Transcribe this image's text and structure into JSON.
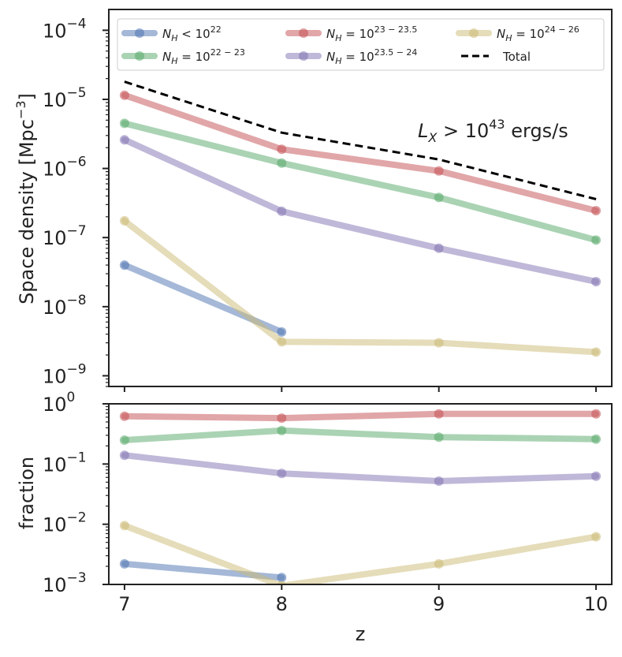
{
  "chart_data": [
    {
      "type": "line",
      "panel": "top",
      "yscale": "log",
      "ylabel": "Space density  [Mpc",
      "ylabel_sup": "−3",
      "ylabel_end": "]",
      "ylim": [
        7e-10,
        0.0002
      ],
      "xlim": [
        6.9,
        10.1
      ],
      "x": [
        7,
        8,
        9,
        10
      ],
      "x_tick_labels": [
        "7",
        "8",
        "9",
        "10"
      ],
      "y_ticks": [
        {
          "value": 1e-09,
          "base": "10",
          "exp": "−9"
        },
        {
          "value": 1e-08,
          "base": "10",
          "exp": "−8"
        },
        {
          "value": 1e-07,
          "base": "10",
          "exp": "−7"
        },
        {
          "value": 1e-06,
          "base": "10",
          "exp": "−6"
        },
        {
          "value": 1e-05,
          "base": "10",
          "exp": "−5"
        },
        {
          "value": 0.0001,
          "base": "10",
          "exp": "−4"
        }
      ],
      "annotation": {
        "prefix": "L",
        "sub": "X",
        "middle": " > 10",
        "sup": "43",
        "suffix": " ergs/s"
      },
      "series": [
        {
          "key": "s1",
          "name_base": "N",
          "name_sub": "H",
          "name_rest": " < 10",
          "name_sup": "22",
          "color": "#4c72b0",
          "x": [
            7,
            8
          ],
          "values": [
            4e-08,
            4.3e-09
          ]
        },
        {
          "key": "s2",
          "name_base": "N",
          "name_sub": "H",
          "name_rest": " = 10",
          "name_sup": "22 − 23",
          "color": "#55a868",
          "x": [
            7,
            8,
            9,
            10
          ],
          "values": [
            4.5e-06,
            1.2e-06,
            3.8e-07,
            9.2e-08
          ]
        },
        {
          "key": "s3",
          "name_base": "N",
          "name_sub": "H",
          "name_rest": " = 10",
          "name_sup": "23 − 23.5",
          "color": "#c44e52",
          "x": [
            7,
            8,
            9,
            10
          ],
          "values": [
            1.15e-05,
            1.9e-06,
            9.2e-07,
            2.45e-07
          ]
        },
        {
          "key": "s4",
          "name_base": "N",
          "name_sub": "H",
          "name_rest": " = 10",
          "name_sup": "23.5 − 24",
          "color": "#8172b2",
          "x": [
            7,
            8,
            9,
            10
          ],
          "values": [
            2.6e-06,
            2.4e-07,
            7e-08,
            2.3e-08
          ]
        },
        {
          "key": "s5",
          "name_base": "N",
          "name_sub": "H",
          "name_rest": " = 10",
          "name_sup": "24 − 26",
          "color": "#ccb974",
          "x": [
            7,
            8,
            9,
            10
          ],
          "values": [
            1.75e-07,
            3.1e-09,
            3e-09,
            2.2e-09
          ]
        },
        {
          "key": "total",
          "name": "Total",
          "color": "#000000",
          "dashed": true,
          "x": [
            7,
            8,
            9,
            10
          ],
          "values": [
            1.8e-05,
            3.3e-06,
            1.35e-06,
            3.6e-07
          ]
        }
      ]
    },
    {
      "type": "line",
      "panel": "bottom",
      "yscale": "log",
      "xlabel": "z",
      "ylabel": "fraction",
      "ylim": [
        0.001,
        1
      ],
      "xlim": [
        6.9,
        10.1
      ],
      "x": [
        7,
        8,
        9,
        10
      ],
      "x_tick_labels": [
        "7",
        "8",
        "9",
        "10"
      ],
      "y_ticks": [
        {
          "value": 0.001,
          "base": "10",
          "exp": "−3"
        },
        {
          "value": 0.01,
          "base": "10",
          "exp": "−2"
        },
        {
          "value": 0.1,
          "base": "10",
          "exp": "−1"
        },
        {
          "value": 1,
          "base": "10",
          "exp": "0"
        }
      ],
      "series": [
        {
          "key": "s1",
          "color": "#4c72b0",
          "x": [
            7,
            8
          ],
          "values": [
            0.0022,
            0.0013
          ]
        },
        {
          "key": "s2",
          "color": "#55a868",
          "x": [
            7,
            8,
            9,
            10
          ],
          "values": [
            0.25,
            0.36,
            0.28,
            0.26
          ]
        },
        {
          "key": "s3",
          "color": "#c44e52",
          "x": [
            7,
            8,
            9,
            10
          ],
          "values": [
            0.62,
            0.58,
            0.68,
            0.68
          ]
        },
        {
          "key": "s4",
          "color": "#8172b2",
          "x": [
            7,
            8,
            9,
            10
          ],
          "values": [
            0.14,
            0.07,
            0.052,
            0.063
          ]
        },
        {
          "key": "s5",
          "color": "#ccb974",
          "x": [
            7,
            8,
            9,
            10
          ],
          "values": [
            0.0095,
            0.00095,
            0.0022,
            0.0062
          ]
        }
      ]
    }
  ]
}
